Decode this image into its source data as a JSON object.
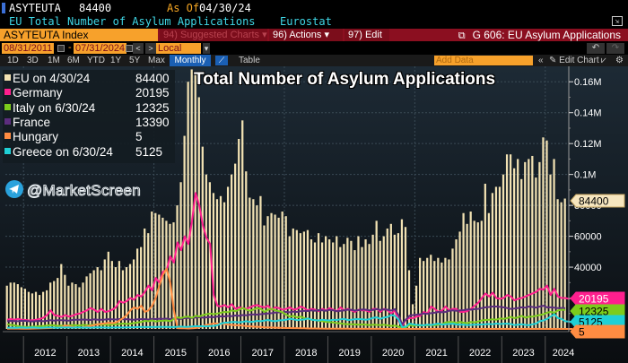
{
  "header": {
    "ticker": "ASYTEUTA",
    "last_value": "84400",
    "as_of_label": "As Of",
    "as_of_date": "04/30/24",
    "description": "EU Total Number of Asylum Applications",
    "source": "Eurostat"
  },
  "toolbar": {
    "index_field": "ASYTEUTA Index",
    "suggested_charts": "94) Suggested Charts",
    "actions": "96) Actions",
    "edit": "97) Edit",
    "chart_title": "G 606: EU Asylum Applications",
    "start_date": "08/31/2011",
    "end_date": "07/31/2024",
    "date_separator": "-",
    "currency": "Local CCY",
    "prev_label": "<",
    "next_label": ">",
    "ranges": [
      "1D",
      "3D",
      "1M",
      "6M",
      "YTD",
      "1Y",
      "5Y",
      "Max"
    ],
    "frequency": "Monthly",
    "table_label": "Table",
    "add_data_placeholder": "Add Data",
    "collapse_label": "«",
    "edit_chart_label": "Edit Chart",
    "undo_label": "↶",
    "redo_label": "↷"
  },
  "legend": [
    {
      "label": "EU on 4/30/24",
      "value": "84400",
      "color": "#f2e2b3"
    },
    {
      "label": "Germany",
      "value": "20195",
      "color": "#ff1f8e"
    },
    {
      "label": "Italy on 6/30/24",
      "value": "12325",
      "color": "#7ccc1c"
    },
    {
      "label": "France",
      "value": "13390",
      "color": "#5c2d7e"
    },
    {
      "label": "Hungary",
      "value": "5",
      "color": "#ff8c42"
    },
    {
      "label": "Greece on 6/30/24",
      "value": "5125",
      "color": "#1fd0d6"
    }
  ],
  "watermark": "@MarketScreen",
  "chart_data": {
    "type": "bar",
    "title": "Total Number of Asylum Applications",
    "xlabel": "",
    "ylabel": "",
    "start": "2011-08",
    "frequency": "monthly",
    "ylim": [
      0,
      170000
    ],
    "yticks": [
      40000,
      60000,
      80000,
      100000,
      120000,
      140000,
      160000
    ],
    "ytick_labels": [
      "40000",
      "60000",
      "80000",
      "0.1M",
      "0.12M",
      "0.14M",
      "0.16M"
    ],
    "xtick_labels": [
      "2012",
      "2013",
      "2014",
      "2015",
      "2016",
      "2017",
      "2018",
      "2019",
      "2020",
      "2021",
      "2022",
      "2023",
      "2024"
    ],
    "grid": true,
    "legend_position": "top-left",
    "last_value_tags": [
      {
        "series": "EU",
        "value": "84400"
      },
      {
        "series": "Germany",
        "value": "20195"
      },
      {
        "series": "Italy",
        "value": "12325"
      },
      {
        "series": "Greece",
        "value": "5125"
      },
      {
        "series": "Hungary",
        "value": "5"
      }
    ],
    "series": [
      {
        "name": "EU",
        "kind": "bar",
        "color": "#f2e2b3",
        "values": [
          28000,
          30000,
          30000,
          29000,
          27000,
          26000,
          24000,
          23000,
          24000,
          22000,
          24000,
          25000,
          30000,
          31000,
          33000,
          42000,
          35000,
          28000,
          30000,
          29000,
          27000,
          30000,
          34000,
          36000,
          38000,
          40000,
          38000,
          45000,
          50000,
          44000,
          40000,
          44000,
          38000,
          40000,
          42000,
          45000,
          52000,
          53000,
          65000,
          62000,
          76000,
          75000,
          74000,
          72000,
          70000,
          68000,
          69000,
          80000,
          95000,
          125000,
          160000,
          168000,
          165000,
          150000,
          118000,
          100000,
          95000,
          88000,
          84000,
          86000,
          82000,
          92000,
          100000,
          107000,
          123000,
          135000,
          102000,
          85000,
          84000,
          80000,
          86000,
          67000,
          73000,
          75000,
          74000,
          72000,
          76000,
          73000,
          60000,
          65000,
          64000,
          62000,
          63000,
          64000,
          58000,
          56000,
          62000,
          56000,
          60000,
          58000,
          56000,
          60000,
          53000,
          55000,
          59000,
          57000,
          51000,
          60000,
          53000,
          58000,
          55000,
          61000,
          70000,
          57000,
          60000,
          65000,
          68000,
          61000,
          62000,
          71000,
          66000,
          38000,
          16000,
          28000,
          46000,
          44000,
          46000,
          48000,
          44000,
          46000,
          43000,
          46000,
          45000,
          52000,
          58000,
          63000,
          75000,
          68000,
          76000,
          70000,
          69000,
          70000,
          94000,
          75000,
          88000,
          92000,
          92000,
          100000,
          113000,
          113000,
          104000,
          110000,
          97000,
          108000,
          110000,
          112000,
          98000,
          108000,
          124000,
          122000,
          100000,
          110000,
          84000,
          82000,
          84400
        ]
      },
      {
        "name": "Germany",
        "kind": "line",
        "color": "#ff1f8e",
        "values": [
          6000,
          6500,
          6000,
          6500,
          6000,
          5800,
          5500,
          5600,
          6000,
          6500,
          7200,
          9000,
          12000,
          9000,
          8500,
          7800,
          9000,
          8000,
          8500,
          9500,
          10000,
          11000,
          12000,
          13500,
          12500,
          11000,
          13000,
          11000,
          11500,
          12500,
          14000,
          18000,
          17000,
          18000,
          20000,
          19000,
          22000,
          21000,
          24000,
          28000,
          25000,
          33000,
          30000,
          37000,
          38000,
          47000,
          43000,
          56000,
          51000,
          60000,
          55000,
          70000,
          88000,
          80000,
          67000,
          59000,
          55000,
          22000,
          15000,
          14500,
          15500,
          14000,
          16000,
          13000,
          14000,
          13500,
          13000,
          14000,
          15000,
          15500,
          14500,
          14000,
          15000,
          12500,
          14000,
          13500,
          12500,
          13000,
          14000,
          12500,
          13000,
          14500,
          13500,
          12000,
          13000,
          12500,
          11500,
          13000,
          12000,
          13500,
          12500,
          11500,
          14000,
          12000,
          13000,
          12000,
          11000,
          12500,
          12000,
          12000,
          11000,
          13000,
          13000,
          11000,
          13000,
          12000,
          10000,
          12000,
          5000,
          2000,
          6000,
          7000,
          7000,
          8000,
          8500,
          11000,
          10000,
          14500,
          13000,
          11000,
          12000,
          14500,
          12000,
          13000,
          13000,
          11000,
          11000,
          11500,
          13000,
          15000,
          17000,
          20000,
          23000,
          21000,
          23500,
          20000,
          19500,
          20000,
          22000,
          21000,
          18500,
          19500,
          20000,
          21000,
          22000,
          23000,
          24000,
          26000,
          25500,
          28000,
          22000,
          26000,
          21000,
          20000,
          20000,
          19500,
          20195
        ]
      },
      {
        "name": "France",
        "kind": "line",
        "color": "#5c2d7e",
        "values": [
          5000,
          5200,
          5100,
          5000,
          5300,
          5200,
          5000,
          4900,
          5100,
          5200,
          5000,
          5300,
          5600,
          5400,
          5700,
          5600,
          5500,
          5400,
          5800,
          6000,
          5900,
          6100,
          6000,
          5800,
          6200,
          6000,
          5900,
          6100,
          6300,
          6200,
          6100,
          6400,
          6200,
          6300,
          6100,
          6000,
          6200,
          6400,
          6300,
          6100,
          6500,
          6400,
          6600,
          6500,
          6700,
          6300,
          6800,
          6600,
          6500,
          7000,
          7200,
          7000,
          7400,
          7600,
          7300,
          7500,
          7800,
          7600,
          8000,
          8200,
          8100,
          8400,
          8300,
          8700,
          8500,
          9000,
          8800,
          9200,
          9400,
          9300,
          9600,
          9800,
          10000,
          10200,
          10600,
          10800,
          10500,
          11000,
          10800,
          11200,
          11000,
          11500,
          11800,
          11600,
          12000,
          11800,
          12200,
          12000,
          11800,
          12400,
          12000,
          11500,
          11800,
          12000,
          12500,
          12400,
          11900,
          12200,
          12600,
          12500,
          12000,
          12300,
          12800,
          12300,
          12600,
          12500,
          11900,
          12800,
          9000,
          3000,
          6000,
          8500,
          9000,
          9200,
          9500,
          10000,
          9800,
          10200,
          10500,
          11000,
          10800,
          11000,
          11800,
          12000,
          11800,
          12000,
          12200,
          12600,
          12500,
          12800,
          13000,
          13500,
          14000,
          14200,
          14500,
          14500,
          14300,
          14000,
          13500,
          13000,
          13200,
          13600,
          14000,
          13800,
          14500,
          14200,
          13800,
          14500,
          15000,
          14000,
          14000,
          13800,
          13500,
          13600,
          13390
        ]
      },
      {
        "name": "Italy",
        "kind": "line",
        "color": "#7ccc1c",
        "values": [
          3000,
          2600,
          2300,
          1800,
          1500,
          1400,
          1300,
          1500,
          1600,
          1800,
          2000,
          2200,
          2500,
          2300,
          2000,
          2100,
          2200,
          2300,
          2500,
          2400,
          2200,
          2600,
          2400,
          2500,
          2800,
          3000,
          2700,
          2900,
          2500,
          3000,
          3100,
          3200,
          3500,
          3200,
          3400,
          3800,
          4200,
          4500,
          5200,
          5000,
          5500,
          4800,
          5200,
          5300,
          5500,
          5000,
          6500,
          7500,
          7000,
          7800,
          8000,
          7200,
          8500,
          8000,
          9000,
          9500,
          10000,
          9600,
          10000,
          10500,
          11000,
          10800,
          12000,
          11500,
          12500,
          13500,
          12500,
          11800,
          12500,
          13500,
          13000,
          11000,
          12500,
          13000,
          12000,
          11500,
          10800,
          9200,
          8000,
          8500,
          7500,
          8000,
          7000,
          6500,
          6000,
          5800,
          5300,
          5000,
          4600,
          4400,
          4200,
          3800,
          3600,
          3200,
          3100,
          3000,
          2900,
          2800,
          2900,
          2700,
          2500,
          2800,
          2600,
          2500,
          2700,
          2300,
          2000,
          2200,
          1500,
          500,
          1000,
          2500,
          2000,
          2400,
          2200,
          2500,
          2300,
          2600,
          2300,
          2800,
          3000,
          4200,
          4500,
          4400,
          3900,
          4600,
          4000,
          3800,
          4500,
          4300,
          4800,
          5500,
          5800,
          5900,
          6200,
          6000,
          6800,
          6500,
          7000,
          7800,
          7000,
          7500,
          8500,
          7300,
          7900,
          8000,
          8500,
          9000,
          9500,
          10500,
          11000,
          10500,
          12000,
          12500,
          12325
        ]
      },
      {
        "name": "Hungary",
        "kind": "line",
        "color": "#ff8c42",
        "values": [
          200,
          250,
          300,
          250,
          200,
          180,
          200,
          250,
          300,
          350,
          400,
          500,
          600,
          800,
          900,
          1200,
          2200,
          1800,
          1200,
          900,
          800,
          1000,
          1500,
          2000,
          2500,
          3000,
          3300,
          3600,
          4000,
          3800,
          4200,
          5500,
          7000,
          9000,
          12000,
          14000,
          13000,
          15000,
          11000,
          12000,
          15000,
          20000,
          28000,
          35000,
          39000,
          30000,
          12000,
          500,
          400,
          400,
          300,
          400,
          600,
          1000,
          1800,
          2600,
          3000,
          3600,
          3500,
          3400,
          3200,
          2800,
          2600,
          2400,
          2300,
          2200,
          1800,
          1700,
          1500,
          1400,
          1300,
          1000,
          900,
          900,
          800,
          700,
          700,
          600,
          600,
          500,
          500,
          400,
          400,
          300,
          300,
          300,
          250,
          250,
          200,
          200,
          200,
          150,
          150,
          100,
          100,
          80,
          80,
          60,
          60,
          50,
          40,
          40,
          30,
          30,
          20,
          20,
          20,
          20,
          10,
          10,
          10,
          10,
          10,
          10,
          10,
          10,
          10,
          10,
          10,
          10,
          10,
          10,
          10,
          10,
          10,
          10,
          10,
          10,
          10,
          10,
          10,
          10,
          10,
          10,
          5,
          5,
          5,
          5,
          5,
          5,
          5,
          5,
          5,
          5,
          5,
          5,
          5,
          5,
          5,
          5,
          5,
          5,
          5,
          5,
          5,
          5,
          5
        ]
      },
      {
        "name": "Greece",
        "kind": "line",
        "color": "#1fd0d6",
        "values": [
          800,
          800,
          700,
          800,
          900,
          700,
          800,
          900,
          800,
          700,
          800,
          900,
          900,
          800,
          800,
          900,
          900,
          1000,
          800,
          900,
          900,
          800,
          900,
          800,
          900,
          1000,
          900,
          900,
          800,
          900,
          1000,
          900,
          900,
          1000,
          1000,
          1100,
          1200,
          1300,
          1200,
          1200,
          1300,
          1200,
          1400,
          1300,
          1300,
          1200,
          1200,
          1400,
          1500,
          1300,
          1400,
          1600,
          1800,
          1700,
          1800,
          1700,
          1900,
          2000,
          2400,
          3500,
          4000,
          4200,
          4500,
          4500,
          4300,
          4600,
          5000,
          4500,
          4700,
          5200,
          5000,
          5400,
          5800,
          5200,
          5000,
          5500,
          5700,
          6000,
          6500,
          6200,
          5700,
          5900,
          6100,
          6800,
          6000,
          5600,
          5500,
          6000,
          5700,
          5500,
          6000,
          5800,
          6200,
          6500,
          5800,
          6000,
          6300,
          6400,
          6200,
          6000,
          6300,
          7200,
          7500,
          6500,
          7400,
          7800,
          9000,
          8500,
          6000,
          1200,
          1500,
          3500,
          3000,
          2600,
          2500,
          2400,
          2700,
          2600,
          3000,
          3500,
          2800,
          3000,
          3200,
          3400,
          2900,
          2800,
          2700,
          2500,
          2600,
          2800,
          2700,
          2900,
          3000,
          3200,
          3100,
          3500,
          3200,
          3300,
          3400,
          3200,
          2500,
          2800,
          3000,
          2600,
          2400,
          3000,
          3500,
          5000,
          5500,
          6500,
          8000,
          9500,
          7000,
          6500,
          5000,
          4800,
          4200,
          5125
        ]
      }
    ]
  }
}
